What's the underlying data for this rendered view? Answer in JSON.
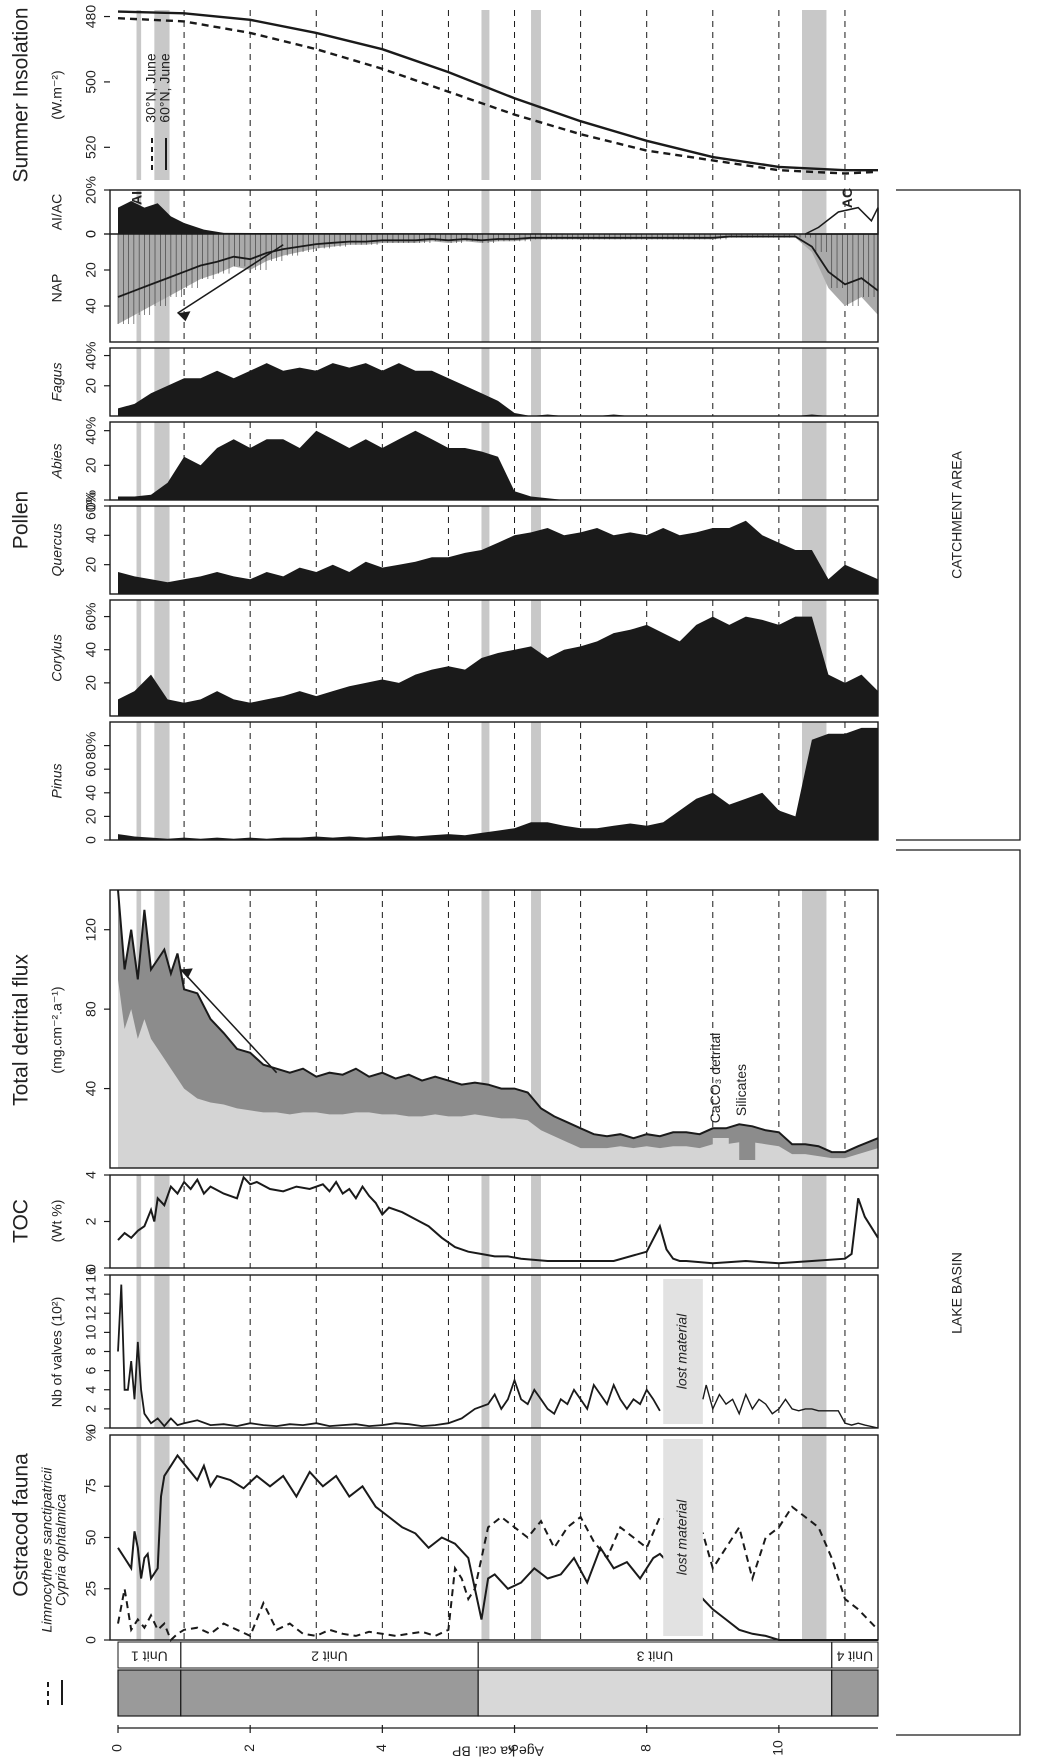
{
  "chart_data": {
    "type": "area",
    "orientation": "rotated 90 degrees (age axis runs left-to-right along the page bottom)",
    "xlabel": "Age ka cal. BP",
    "xlim": [
      0,
      11.5
    ],
    "xticks": [
      "0",
      "2",
      "4",
      "6",
      "8",
      "10"
    ],
    "units": [
      {
        "name": "Unit 1",
        "from": 0,
        "to": 0.95
      },
      {
        "name": "Unit 2",
        "from": 0.95,
        "to": 5.45
      },
      {
        "name": "Unit 3",
        "from": 5.45,
        "to": 10.8
      },
      {
        "name": "Unit 4",
        "from": 10.8,
        "to": 11.5
      }
    ],
    "group_labels": {
      "lake": "LAKE  BASIN",
      "catchment": "CATCHMENT  AREA"
    },
    "titles": {
      "ostracod": "Ostracod fauna",
      "toc": "TOC",
      "detrital": "Total detrital flux",
      "pollen": "Pollen",
      "insolation": "Summer Insolation"
    },
    "ostracod_pct": {
      "ylabel": "%",
      "yticks": [
        "0",
        "25",
        "50",
        "75"
      ],
      "ylim": [
        0,
        100
      ],
      "legend": [
        "Limnocythere sanctipatricii",
        "Cypria ophtalmica"
      ],
      "series": [
        {
          "name": "Cypria ophtalmica",
          "style": "solid",
          "x": [
            0,
            0.1,
            0.2,
            0.25,
            0.3,
            0.35,
            0.4,
            0.45,
            0.5,
            0.6,
            0.65,
            0.7,
            0.8,
            0.9,
            1.0,
            1.1,
            1.2,
            1.3,
            1.4,
            1.5,
            1.7,
            1.9,
            2.1,
            2.3,
            2.5,
            2.7,
            2.9,
            3.1,
            3.3,
            3.5,
            3.7,
            3.9,
            4.1,
            4.3,
            4.5,
            4.7,
            4.9,
            5.1,
            5.3,
            5.5,
            5.6,
            5.7,
            5.9,
            6.1,
            6.3,
            6.5,
            6.7,
            6.9,
            7.1,
            7.3,
            7.5,
            7.7,
            7.9,
            8.1,
            8.2,
            8.85,
            9.0,
            9.2,
            9.4,
            9.6,
            9.8,
            10.0,
            10.2,
            10.6,
            11.0,
            11.5
          ],
          "y": [
            45,
            40,
            35,
            53,
            45,
            30,
            40,
            42,
            30,
            35,
            70,
            80,
            85,
            90,
            86,
            82,
            78,
            85,
            75,
            80,
            78,
            74,
            80,
            75,
            80,
            70,
            82,
            75,
            80,
            70,
            75,
            65,
            60,
            55,
            52,
            45,
            50,
            47,
            40,
            10,
            30,
            32,
            25,
            28,
            35,
            30,
            32,
            40,
            28,
            45,
            35,
            38,
            30,
            40,
            42,
            20,
            15,
            10,
            5,
            3,
            2,
            0,
            0,
            0,
            0,
            0
          ]
        },
        {
          "name": "Limnocythere sanctipatricii",
          "style": "dashed",
          "x": [
            0,
            0.1,
            0.2,
            0.3,
            0.4,
            0.5,
            0.6,
            0.7,
            0.8,
            0.9,
            1.0,
            1.2,
            1.4,
            1.6,
            1.8,
            2.0,
            2.2,
            2.4,
            2.6,
            2.8,
            3.0,
            3.2,
            3.4,
            3.6,
            3.8,
            4.0,
            4.2,
            4.4,
            4.6,
            4.8,
            5.0,
            5.1,
            5.2,
            5.3,
            5.4,
            5.6,
            5.8,
            6.0,
            6.2,
            6.4,
            6.6,
            6.8,
            7.0,
            7.2,
            7.4,
            7.6,
            7.8,
            8.0,
            8.2,
            8.85,
            9.0,
            9.2,
            9.4,
            9.6,
            9.8,
            10.0,
            10.2,
            10.4,
            10.6,
            10.8,
            11.0,
            11.2,
            11.5
          ],
          "y": [
            8,
            25,
            5,
            10,
            6,
            12,
            5,
            8,
            0,
            3,
            5,
            6,
            3,
            8,
            5,
            2,
            18,
            5,
            8,
            3,
            2,
            5,
            3,
            2,
            4,
            3,
            2,
            3,
            4,
            2,
            5,
            35,
            30,
            20,
            25,
            55,
            60,
            55,
            50,
            58,
            45,
            55,
            60,
            48,
            40,
            55,
            50,
            45,
            60,
            52,
            35,
            45,
            55,
            30,
            50,
            55,
            65,
            60,
            55,
            40,
            20,
            15,
            5
          ]
        }
      ]
    },
    "ostracod_valves": {
      "ylabel": "Nb of valves (10²)",
      "yticks": [
        "0",
        "2",
        "4",
        "6",
        "8",
        "10",
        "12",
        "14",
        "16"
      ],
      "ylim": [
        0,
        16
      ],
      "x": [
        0,
        0.05,
        0.1,
        0.15,
        0.2,
        0.25,
        0.3,
        0.35,
        0.4,
        0.5,
        0.6,
        0.7,
        0.8,
        0.9,
        1.0,
        1.2,
        1.4,
        1.6,
        1.8,
        2.0,
        2.2,
        2.4,
        2.6,
        2.8,
        3.0,
        3.2,
        3.4,
        3.6,
        3.8,
        4.0,
        4.2,
        4.4,
        4.6,
        4.8,
        5.0,
        5.2,
        5.4,
        5.6,
        5.7,
        5.8,
        5.9,
        6.0,
        6.1,
        6.2,
        6.3,
        6.4,
        6.5,
        6.6,
        6.7,
        6.8,
        6.9,
        7.0,
        7.1,
        7.2,
        7.3,
        7.4,
        7.5,
        7.6,
        7.7,
        7.8,
        7.9,
        8.0,
        8.1,
        8.2
      ],
      "y": [
        8,
        15,
        4,
        4,
        7,
        3,
        9,
        4,
        1.5,
        0.5,
        1,
        0.2,
        1,
        0.3,
        0.5,
        0.8,
        0.3,
        0.4,
        0.2,
        0.5,
        0.3,
        0.2,
        0.4,
        0.3,
        0.5,
        0.2,
        0.3,
        0.4,
        0.2,
        0.3,
        0.5,
        0.4,
        0.2,
        0.3,
        0.5,
        1,
        2,
        2.5,
        3.5,
        2,
        3,
        5,
        3,
        2.5,
        4,
        3,
        2,
        1.5,
        3,
        2.5,
        4,
        3,
        2,
        4.5,
        3.5,
        2.5,
        4.5,
        3,
        2,
        3,
        2.5,
        4,
        3,
        1.8
      ],
      "x2": [
        8.85,
        8.9,
        9.0,
        9.1,
        9.2,
        9.3,
        9.4,
        9.5,
        9.6,
        9.7,
        9.8,
        9.9,
        10.0,
        10.1,
        10.2,
        10.3,
        10.4,
        10.5,
        10.6,
        10.7,
        10.8,
        10.9,
        11.0,
        11.1,
        11.2,
        11.3,
        11.5
      ],
      "y2": [
        3,
        4.5,
        2,
        3.5,
        2.5,
        3,
        1.5,
        3.5,
        2,
        3,
        2.5,
        1.5,
        2,
        3,
        2,
        1.8,
        2,
        2,
        1.8,
        1.8,
        1.8,
        1.8,
        0.5,
        0.3,
        0.5,
        0.3,
        0
      ],
      "annotation": "lost material"
    },
    "toc": {
      "ylabel": "(Wt %)",
      "yticks": [
        "0",
        "2",
        "4"
      ],
      "ylim": [
        0,
        4
      ],
      "x": [
        0,
        0.1,
        0.2,
        0.3,
        0.4,
        0.5,
        0.55,
        0.6,
        0.7,
        0.8,
        0.9,
        1.0,
        1.1,
        1.2,
        1.3,
        1.4,
        1.6,
        1.8,
        1.9,
        2.0,
        2.1,
        2.3,
        2.5,
        2.7,
        2.9,
        3.1,
        3.2,
        3.3,
        3.4,
        3.5,
        3.6,
        3.7,
        3.8,
        3.9,
        4.0,
        4.1,
        4.3,
        4.5,
        4.7,
        4.9,
        5.1,
        5.3,
        5.5,
        5.7,
        5.9,
        6.1,
        6.5,
        7.0,
        7.5,
        8.0,
        8.2,
        8.3,
        8.4,
        8.5,
        8.6,
        9.0,
        9.5,
        10.0,
        10.5,
        11.0,
        11.1,
        11.2,
        11.3,
        11.5
      ],
      "y": [
        1.2,
        1.5,
        1.3,
        1.6,
        1.8,
        2.5,
        2,
        3,
        2.7,
        3.5,
        3.2,
        3.7,
        3.4,
        3.8,
        3.2,
        3.5,
        3.2,
        3.0,
        3.9,
        3.6,
        3.7,
        3.4,
        3.3,
        3.5,
        3.4,
        3.6,
        3.3,
        3.7,
        3.2,
        3.4,
        3.0,
        3.5,
        3.1,
        2.8,
        2.3,
        2.6,
        2.4,
        2.1,
        1.8,
        1.3,
        0.9,
        0.7,
        0.6,
        0.5,
        0.5,
        0.4,
        0.3,
        0.3,
        0.3,
        0.7,
        1.8,
        0.8,
        0.4,
        0.3,
        0.3,
        0.2,
        0.3,
        0.2,
        0.3,
        0.4,
        0.6,
        3,
        2.2,
        1.3
      ]
    },
    "detrital": {
      "ylabel": "(mg.cm⁻².a⁻¹)",
      "yticks": [
        "40",
        "80",
        "120"
      ],
      "ylim": [
        0,
        140
      ],
      "legend": [
        "CaCO₃ detrital",
        "Silicates"
      ],
      "x": [
        0,
        0.1,
        0.2,
        0.3,
        0.4,
        0.5,
        0.6,
        0.7,
        0.8,
        0.9,
        1.0,
        1.2,
        1.4,
        1.6,
        1.8,
        2.0,
        2.2,
        2.4,
        2.6,
        2.8,
        3.0,
        3.2,
        3.4,
        3.6,
        3.8,
        4.0,
        4.2,
        4.4,
        4.6,
        4.8,
        5.0,
        5.2,
        5.4,
        5.6,
        5.8,
        6.0,
        6.2,
        6.4,
        6.6,
        6.8,
        7.0,
        7.2,
        7.4,
        7.6,
        7.8,
        8.0,
        8.2,
        8.4,
        8.6,
        8.8,
        9.0,
        9.2,
        9.4,
        9.6,
        9.8,
        10.0,
        10.2,
        10.4,
        10.6,
        10.8,
        11.0,
        11.2,
        11.5
      ],
      "total": [
        140,
        100,
        120,
        95,
        130,
        100,
        105,
        110,
        98,
        108,
        90,
        88,
        75,
        68,
        60,
        58,
        52,
        50,
        48,
        50,
        46,
        48,
        47,
        50,
        46,
        48,
        45,
        47,
        44,
        46,
        44,
        42,
        43,
        42,
        40,
        40,
        38,
        30,
        26,
        23,
        20,
        17,
        16,
        17,
        15,
        17,
        16,
        18,
        18,
        17,
        20,
        20,
        22,
        21,
        19,
        18,
        12,
        12,
        11,
        8,
        8,
        11,
        15
      ],
      "caco3": [
        95,
        70,
        80,
        65,
        75,
        65,
        60,
        55,
        50,
        45,
        40,
        35,
        33,
        32,
        30,
        29,
        28,
        28,
        27,
        28,
        28,
        27,
        27,
        28,
        28,
        27,
        27,
        26,
        26,
        27,
        26,
        26,
        27,
        26,
        25,
        25,
        24,
        19,
        16,
        13,
        10,
        10,
        10,
        11,
        10,
        11,
        10,
        11,
        11,
        10,
        12,
        12,
        13,
        13,
        12,
        11,
        7,
        7,
        6,
        5,
        5,
        7,
        10
      ]
    },
    "pollen": {
      "taxa": [
        "Pinus",
        "Corylus",
        "Quercus",
        "Abies",
        "Fagus",
        "NAP"
      ],
      "ticks": {
        "Pinus": [
          "0",
          "20",
          "40",
          "60",
          "80%"
        ],
        "Corylus": [
          "20",
          "40",
          "60%"
        ],
        "Quercus": [
          "20",
          "40",
          "60%"
        ],
        "Abies": [
          "0%",
          "20",
          "40%"
        ],
        "Fagus": [
          "20",
          "40%"
        ],
        "NAP": [
          "40",
          "20",
          "0"
        ]
      },
      "x": [
        0,
        0.25,
        0.5,
        0.75,
        1.0,
        1.25,
        1.5,
        1.75,
        2.0,
        2.25,
        2.5,
        2.75,
        3.0,
        3.25,
        3.5,
        3.75,
        4.0,
        4.25,
        4.5,
        4.75,
        5.0,
        5.25,
        5.5,
        5.75,
        6.0,
        6.25,
        6.5,
        6.75,
        7.0,
        7.25,
        7.5,
        7.75,
        8.0,
        8.25,
        8.5,
        8.75,
        9.0,
        9.25,
        9.5,
        9.75,
        10.0,
        10.25,
        10.5,
        10.75,
        11.0,
        11.25,
        11.5
      ],
      "Pinus": [
        5,
        3,
        2,
        1,
        2,
        1,
        2,
        1,
        2,
        1,
        2,
        2,
        3,
        2,
        3,
        2,
        3,
        4,
        3,
        4,
        5,
        4,
        6,
        8,
        10,
        15,
        15,
        12,
        10,
        10,
        12,
        14,
        12,
        15,
        25,
        35,
        40,
        30,
        35,
        40,
        25,
        20,
        85,
        90,
        90,
        95,
        95
      ],
      "Corylus": [
        10,
        15,
        25,
        10,
        8,
        10,
        15,
        10,
        8,
        10,
        12,
        15,
        12,
        15,
        18,
        20,
        22,
        20,
        25,
        28,
        30,
        28,
        35,
        38,
        40,
        42,
        35,
        40,
        42,
        45,
        50,
        52,
        55,
        50,
        45,
        55,
        60,
        55,
        60,
        58,
        55,
        60,
        60,
        25,
        20,
        25,
        15
      ],
      "Quercus": [
        15,
        12,
        10,
        8,
        10,
        12,
        15,
        12,
        10,
        15,
        12,
        18,
        15,
        20,
        15,
        22,
        18,
        20,
        22,
        25,
        25,
        28,
        30,
        35,
        40,
        42,
        45,
        40,
        42,
        45,
        40,
        42,
        40,
        45,
        40,
        42,
        45,
        45,
        50,
        40,
        35,
        30,
        30,
        10,
        20,
        15,
        10
      ],
      "Abies": [
        2,
        2,
        3,
        10,
        25,
        20,
        30,
        35,
        30,
        35,
        35,
        30,
        40,
        35,
        30,
        35,
        30,
        35,
        40,
        35,
        30,
        30,
        28,
        25,
        5,
        2,
        1,
        0,
        0,
        0,
        0,
        0,
        0,
        0,
        0,
        0,
        0,
        0,
        0,
        0,
        0,
        0,
        0,
        0,
        0,
        0,
        0
      ],
      "Fagus": [
        5,
        8,
        15,
        20,
        25,
        25,
        30,
        25,
        30,
        35,
        30,
        32,
        30,
        35,
        32,
        35,
        30,
        35,
        30,
        30,
        25,
        20,
        15,
        10,
        2,
        0,
        1,
        0,
        0,
        0,
        1,
        0,
        0,
        0,
        0,
        0,
        0,
        0,
        0,
        0,
        0,
        0,
        1,
        0,
        0,
        0,
        0
      ],
      "NAP": [
        50,
        45,
        40,
        35,
        30,
        25,
        22,
        18,
        20,
        15,
        12,
        10,
        8,
        7,
        6,
        6,
        5,
        5,
        5,
        4,
        5,
        4,
        5,
        4,
        4,
        3,
        3,
        3,
        3,
        3,
        3,
        3,
        3,
        3,
        3,
        3,
        3,
        2,
        2,
        2,
        2,
        2,
        10,
        30,
        40,
        35,
        45
      ],
      "AI_AC": {
        "ylabel": "AI/AC",
        "yticks": [
          "20%",
          "0"
        ],
        "labels": [
          "AI",
          "AC"
        ]
      }
    },
    "insolation": {
      "ylabel": "(W.m⁻²)",
      "yticks": [
        "480",
        "500",
        "520"
      ],
      "ylim": [
        478,
        530
      ],
      "legend": [
        "30°N, June",
        "60°N, June"
      ],
      "x": [
        0,
        1,
        2,
        3,
        4,
        5,
        6,
        7,
        8,
        9,
        10,
        11,
        11.5
      ],
      "series": [
        {
          "name": "30°N, June",
          "style": "dashed",
          "values": [
            480.5,
            481.5,
            485,
            490,
            496,
            503,
            510,
            516,
            521,
            524,
            527,
            528,
            527.5
          ]
        },
        {
          "name": "60°N, June",
          "style": "solid",
          "values": [
            478.5,
            479,
            481,
            485,
            490,
            497,
            505,
            512,
            518,
            523,
            526,
            527,
            527
          ]
        }
      ]
    }
  },
  "shade_bands": [
    [
      0.28,
      0.35
    ],
    [
      0.55,
      0.78
    ],
    [
      5.5,
      5.62
    ],
    [
      6.25,
      6.4
    ],
    [
      10.35,
      10.72
    ]
  ],
  "colors": {
    "ink": "#1a1a1a",
    "shade": "#c8c8c8",
    "silicate": "#8c8c8c",
    "caco3": "#d4d4d4",
    "unit_fill": "#9a9a9a"
  }
}
